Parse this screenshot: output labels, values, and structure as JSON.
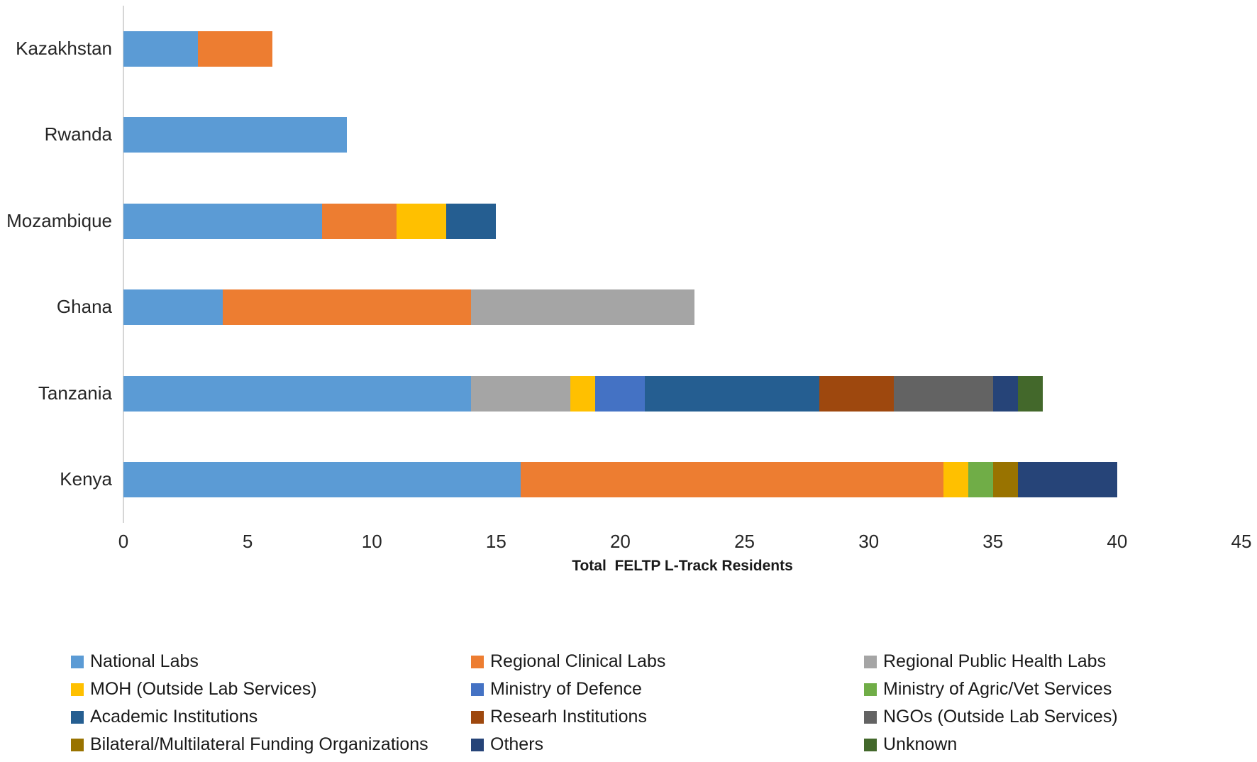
{
  "chart_data": {
    "type": "bar",
    "orientation": "horizontal",
    "stacked": true,
    "title": "",
    "xlabel": "Total  FELTP L-Track Residents",
    "ylabel": "",
    "xlim": [
      0,
      45
    ],
    "xticks": [
      0,
      5,
      10,
      15,
      20,
      25,
      30,
      35,
      40,
      45
    ],
    "grid": false,
    "legend_position": "bottom",
    "categories": [
      "Kazakhstan",
      "Rwanda",
      "Mozambique",
      "Ghana",
      "Tanzania",
      "Kenya"
    ],
    "series": [
      {
        "name": "National  Labs",
        "color": "#5B9BD5",
        "values": [
          3,
          9,
          8,
          4,
          14,
          16
        ]
      },
      {
        "name": "Regional Clinical Labs",
        "color": "#ED7D31",
        "values": [
          3,
          0,
          3,
          10,
          0,
          17
        ]
      },
      {
        "name": "Regional Public Health Labs",
        "color": "#A5A5A5",
        "values": [
          0,
          0,
          0,
          9,
          4,
          0
        ]
      },
      {
        "name": "MOH (Outside Lab Services)",
        "color": "#FFC000",
        "values": [
          0,
          0,
          2,
          0,
          1,
          1
        ]
      },
      {
        "name": "Ministry of Defence",
        "color": "#4472C4",
        "values": [
          0,
          0,
          0,
          0,
          2,
          0
        ]
      },
      {
        "name": "Ministry of Agric/Vet Services",
        "color": "#70AD47",
        "values": [
          0,
          0,
          0,
          0,
          0,
          1
        ]
      },
      {
        "name": "Academic Institutions",
        "color": "#255E91",
        "values": [
          0,
          0,
          2,
          0,
          7,
          0
        ]
      },
      {
        "name": "Researh Institutions",
        "color": "#9E480E",
        "values": [
          0,
          0,
          0,
          0,
          3,
          0
        ]
      },
      {
        "name": "NGOs (Outside Lab Services)",
        "color": "#636363",
        "values": [
          0,
          0,
          0,
          0,
          4,
          0
        ]
      },
      {
        "name": "Bilateral/Multilateral Funding Organizations",
        "color": "#997300",
        "values": [
          0,
          0,
          0,
          0,
          0,
          1
        ]
      },
      {
        "name": "Others",
        "color": "#264478",
        "values": [
          0,
          0,
          0,
          0,
          1,
          4
        ]
      },
      {
        "name": "Unknown",
        "color": "#43682B",
        "values": [
          0,
          0,
          0,
          0,
          1,
          0
        ]
      }
    ]
  }
}
